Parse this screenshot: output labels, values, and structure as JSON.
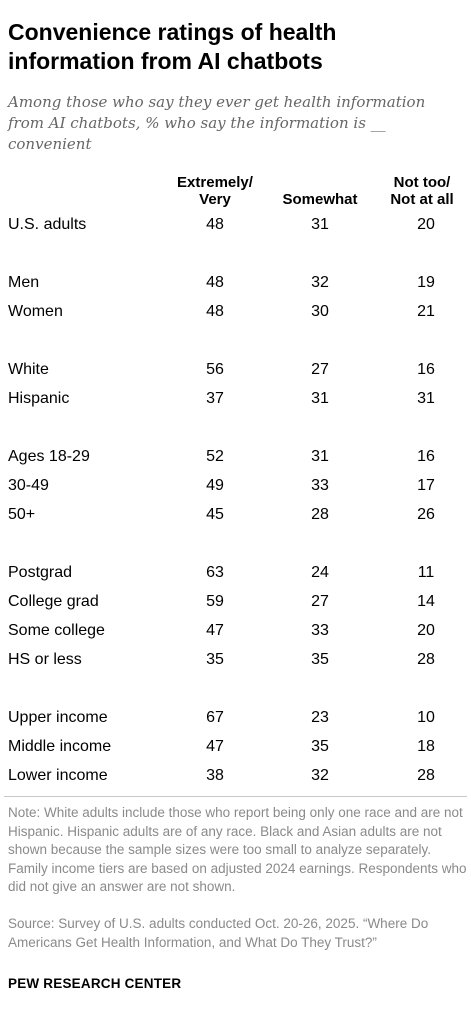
{
  "title": "Convenience ratings of health information from AI chatbots",
  "subtitle": "Among those who say they ever get health information from AI chatbots, % who say the information is __ convenient",
  "chart_data": {
    "type": "table",
    "title": "Convenience ratings of health information from AI chatbots",
    "subtitle": "Among those who say they ever get health information from AI chatbots, % who say the information is __ convenient",
    "columns": [
      "Extremely/ Very",
      "Somewhat",
      "Not too/ Not at all"
    ],
    "groups": [
      {
        "rows": [
          {
            "label": "U.S. adults",
            "values": [
              48,
              31,
              20
            ]
          }
        ]
      },
      {
        "rows": [
          {
            "label": "Men",
            "values": [
              48,
              32,
              19
            ]
          },
          {
            "label": "Women",
            "values": [
              48,
              30,
              21
            ]
          }
        ]
      },
      {
        "rows": [
          {
            "label": "White",
            "values": [
              56,
              27,
              16
            ]
          },
          {
            "label": "Hispanic",
            "values": [
              37,
              31,
              31
            ]
          }
        ]
      },
      {
        "rows": [
          {
            "label": "Ages 18-29",
            "values": [
              52,
              31,
              16
            ]
          },
          {
            "label": "30-49",
            "values": [
              49,
              33,
              17
            ]
          },
          {
            "label": "50+",
            "values": [
              45,
              28,
              26
            ]
          }
        ]
      },
      {
        "rows": [
          {
            "label": "Postgrad",
            "values": [
              63,
              24,
              11
            ]
          },
          {
            "label": "College grad",
            "values": [
              59,
              27,
              14
            ]
          },
          {
            "label": "Some college",
            "values": [
              47,
              33,
              20
            ]
          },
          {
            "label": "HS or less",
            "values": [
              35,
              35,
              28
            ]
          }
        ]
      },
      {
        "rows": [
          {
            "label": "Upper income",
            "values": [
              67,
              23,
              10
            ]
          },
          {
            "label": "Middle income",
            "values": [
              47,
              35,
              18
            ]
          },
          {
            "label": "Lower income",
            "values": [
              38,
              32,
              28
            ]
          }
        ]
      }
    ]
  },
  "header": {
    "col1": "Extremely/\nVery",
    "col2": "Somewhat",
    "col3": "Not too/\nNot at all"
  },
  "note": "Note: White adults include those who report being only one race and are not Hispanic. Hispanic adults are of any race. Black and Asian adults are not shown because the sample sizes were too small to analyze separately. Family income tiers are based on adjusted 2024 earnings. Respondents who did not give an answer are not shown.",
  "source": "Source: Survey of U.S. adults conducted Oct. 20-26, 2025. “Where Do Americans Get Health Information, and What Do They Trust?”",
  "brand": "PEW RESEARCH CENTER"
}
